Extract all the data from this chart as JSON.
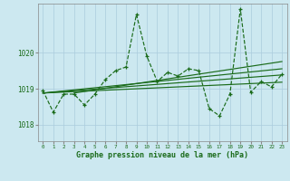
{
  "title": "Graphe pression niveau de la mer (hPa)",
  "background_color": "#cce8f0",
  "grid_color": "#aaccdd",
  "line_color": "#1a6b1a",
  "xlim": [
    -0.5,
    23.5
  ],
  "ylim": [
    1017.55,
    1021.35
  ],
  "yticks": [
    1018,
    1019,
    1020
  ],
  "xticks": [
    0,
    1,
    2,
    3,
    4,
    5,
    6,
    7,
    8,
    9,
    10,
    11,
    12,
    13,
    14,
    15,
    16,
    17,
    18,
    19,
    20,
    21,
    22,
    23
  ],
  "main_x": [
    0,
    1,
    2,
    3,
    4,
    5,
    6,
    7,
    8,
    9,
    10,
    11,
    12,
    13,
    14,
    15,
    16,
    17,
    18,
    19,
    20,
    21,
    22,
    23
  ],
  "main_y": [
    1018.95,
    1018.35,
    1018.85,
    1018.85,
    1018.55,
    1018.85,
    1019.25,
    1019.5,
    1019.6,
    1021.05,
    1019.9,
    1019.2,
    1019.45,
    1019.35,
    1019.55,
    1019.5,
    1018.45,
    1018.25,
    1018.85,
    1021.2,
    1018.9,
    1019.2,
    1019.05,
    1019.4
  ],
  "trend1_x": [
    0,
    23
  ],
  "trend1_y": [
    1018.88,
    1019.18
  ],
  "trend2_x": [
    0,
    23
  ],
  "trend2_y": [
    1018.88,
    1019.38
  ],
  "trend3_x": [
    0,
    23
  ],
  "trend3_y": [
    1018.88,
    1019.55
  ],
  "trend4_x": [
    3,
    23
  ],
  "trend4_y": [
    1018.88,
    1019.75
  ]
}
